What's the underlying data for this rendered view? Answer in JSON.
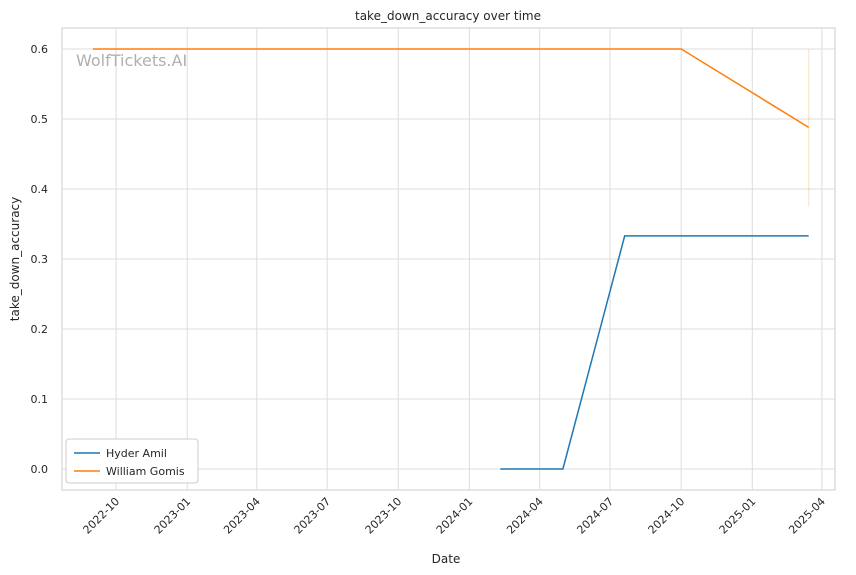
{
  "chart_data": {
    "type": "line",
    "title": "take_down_accuracy over time",
    "xlabel": "Date",
    "ylabel": "take_down_accuracy",
    "watermark": "WolfTickets.AI",
    "x_range": [
      "2022-07-23",
      "2025-04-18"
    ],
    "ylim": [
      -0.03,
      0.63
    ],
    "grid": true,
    "legend_position": "lower-left",
    "x_ticks": [
      "2022-10",
      "2023-01",
      "2023-04",
      "2023-07",
      "2023-10",
      "2024-01",
      "2024-04",
      "2024-07",
      "2024-10",
      "2025-01",
      "2025-04"
    ],
    "y_ticks": [
      "0.0",
      "0.1",
      "0.2",
      "0.3",
      "0.4",
      "0.5",
      "0.6"
    ],
    "series": [
      {
        "name": "Hyder Amil",
        "color": "#1f77b4",
        "points": [
          {
            "x": "2024-02-10",
            "y": 0.0
          },
          {
            "x": "2024-05-01",
            "y": 0.0
          },
          {
            "x": "2024-07-20",
            "y": 0.333
          },
          {
            "x": "2025-03-15",
            "y": 0.333
          }
        ]
      },
      {
        "name": "William Gomis",
        "color": "#ff7f0e",
        "points": [
          {
            "x": "2022-09-01",
            "y": 0.6
          },
          {
            "x": "2024-10-01",
            "y": 0.6
          },
          {
            "x": "2025-03-15",
            "y": 0.488
          }
        ],
        "band": {
          "x": "2025-03-15",
          "low": 0.375,
          "high": 0.6
        }
      }
    ]
  }
}
